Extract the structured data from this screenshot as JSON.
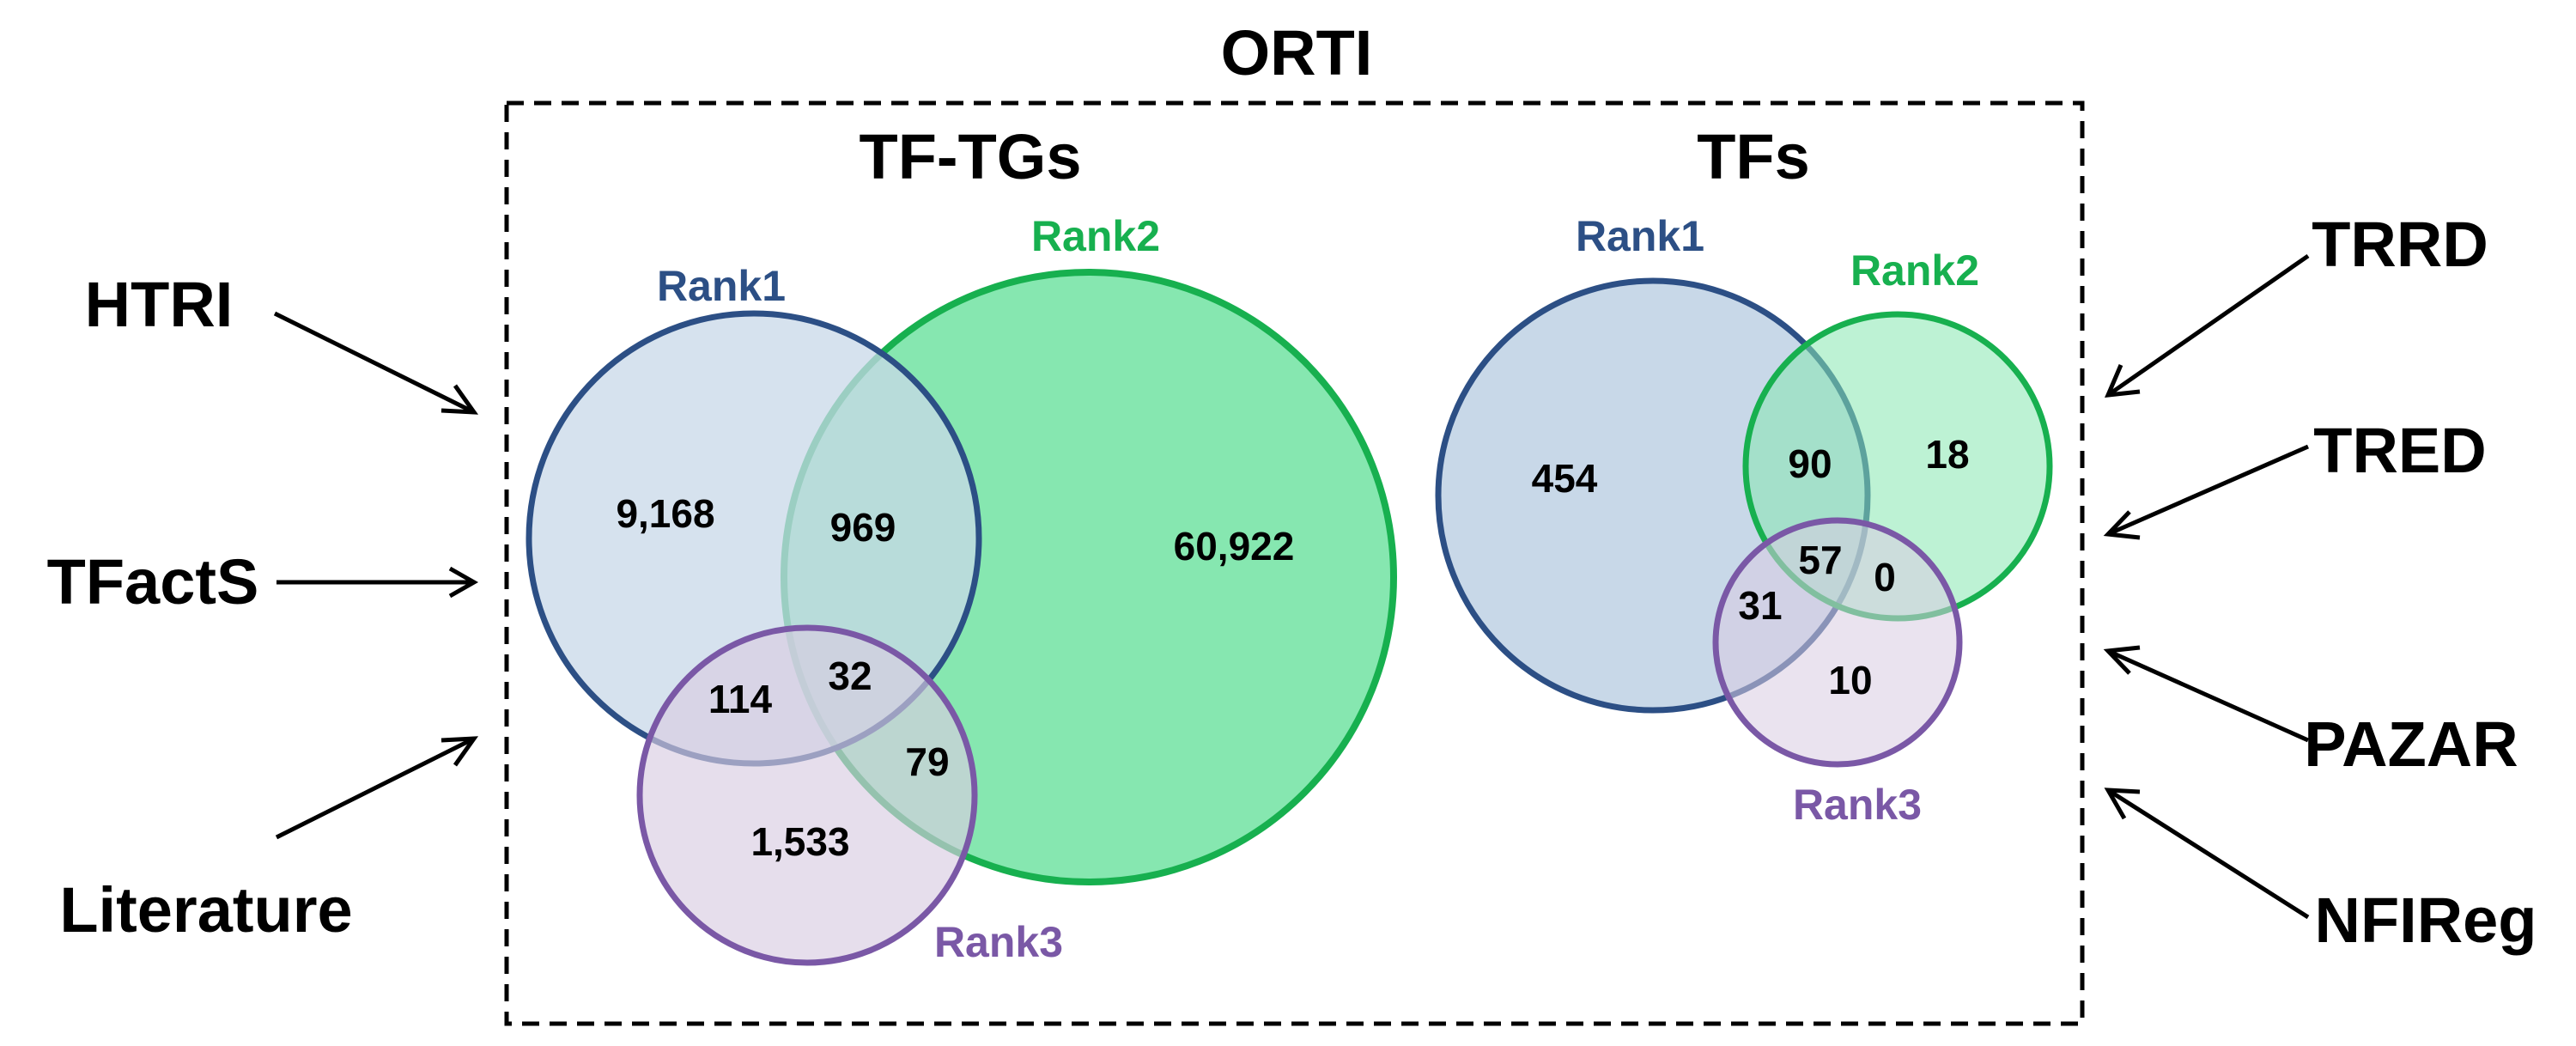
{
  "title": "ORTI",
  "sources_left": [
    "HTRI",
    "TFactS",
    "Literature"
  ],
  "sources_right": [
    "TRRD",
    "TRED",
    "PAZAR",
    "NFIReg"
  ],
  "colors": {
    "rank1_stroke": "#2c4f85",
    "rank1_fill": "#c8d8e8",
    "rank2_stroke": "#17b04f",
    "rank2_fill": "#86e7b0",
    "rank3_stroke": "#7a58a6",
    "rank3_fill": "#d8cce2"
  },
  "panels": [
    {
      "title": "TF-TGs",
      "labels": {
        "rank1": "Rank1",
        "rank2": "Rank2",
        "rank3": "Rank3"
      },
      "counts": {
        "rank1_only": "9,168",
        "rank1_rank2": "969",
        "rank2_only": "60,922",
        "rank1_rank3": "114",
        "all_three": "32",
        "rank2_rank3": "79",
        "rank3_only": "1,533"
      }
    },
    {
      "title": "TFs",
      "labels": {
        "rank1": "Rank1",
        "rank2": "Rank2",
        "rank3": "Rank3"
      },
      "counts": {
        "rank1_only": "454",
        "rank1_rank2": "90",
        "rank2_only": "18",
        "all_three": "57",
        "rank2_rank3": "0",
        "rank1_rank3": "31",
        "rank3_only": "10"
      }
    }
  ]
}
